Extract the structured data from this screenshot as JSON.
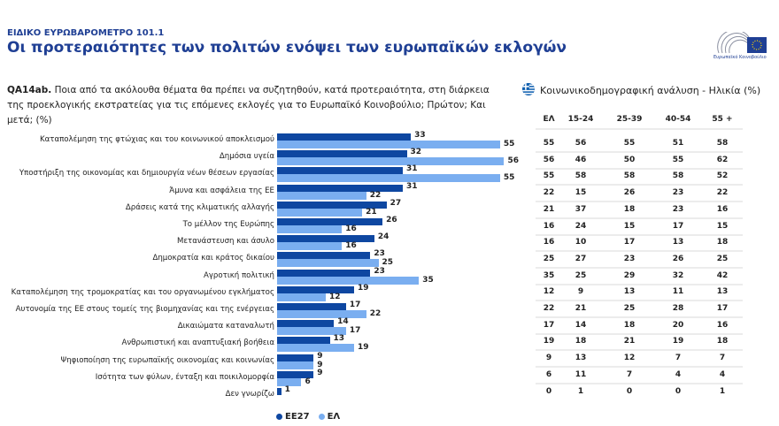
{
  "header": {
    "supertitle": "ΕΙΔΙΚΟ ΕΥΡΩΒΑΡΟΜΕΤΡΟ 101.1",
    "title": "Οι προτεραιότητες των πολιτών ενόψει των ευρωπαϊκών εκλογών",
    "logo_text": "Ευρωπαϊκό Κοινοβούλιο"
  },
  "question": {
    "code": "QA14ab.",
    "text": "Ποια από τα ακόλουθα θέματα θα πρέπει να συζητηθούν, κατά προτεραιότητα, στη διάρκεια της προεκλογικής εκστρατείας για τις επόμενες εκλογές για το Ευρωπαϊκό Κοινοβούλιο; Πρώτον; Και μετά; (%)"
  },
  "colors": {
    "EE27": "#0e47a1",
    "EL": "#7aaef0",
    "title": "#1f3f94"
  },
  "chart_data": {
    "type": "bar",
    "orientation": "horizontal",
    "categories": [
      "Καταπολέμηση της φτώχιας και του κοινωνικού αποκλεισμού",
      "Δημόσια υγεία",
      "Υποστήριξη της οικονομίας και δημιουργία νέων θέσεων εργασίας",
      "Άμυνα και ασφάλεια της ΕΕ",
      "Δράσεις κατά της κλιματικής αλλαγής",
      "Το μέλλον της Ευρώπης",
      "Μετανάστευση και άσυλο",
      "Δημοκρατία και κράτος δικαίου",
      "Αγροτική πολιτική",
      "Καταπολέμηση της τρομοκρατίας και του οργανωμένου εγκλήματος",
      "Αυτονομία της ΕΕ στους τομείς της βιομηχανίας και της ενέργειας",
      "Δικαιώματα καταναλωτή",
      "Ανθρωπιστική και αναπτυξιακή βοήθεια",
      "Ψηφιοποίηση της ευρωπαϊκής οικονομίας και κοινωνίας",
      "Ισότητα των φύλων, ένταξη και ποικιλομορφία",
      "Δεν γνωρίζω"
    ],
    "series": [
      {
        "name": "ΕΕ27",
        "values": [
          33,
          32,
          31,
          31,
          27,
          26,
          24,
          23,
          23,
          19,
          17,
          14,
          13,
          9,
          9,
          1
        ]
      },
      {
        "name": "ΕΛ",
        "values": [
          55,
          56,
          55,
          22,
          21,
          16,
          16,
          25,
          35,
          12,
          22,
          17,
          19,
          9,
          6,
          0
        ]
      }
    ],
    "legend": "bottom",
    "grid": false
  },
  "table": {
    "title": "Κοινωνικοδημογραφική ανάλυση - Ηλικία (%)",
    "headers": [
      "ΕΛ",
      "15-24",
      "25-39",
      "40-54",
      "55 +"
    ],
    "rows": [
      [
        55,
        56,
        55,
        51,
        58
      ],
      [
        56,
        46,
        50,
        55,
        62
      ],
      [
        55,
        58,
        58,
        58,
        52
      ],
      [
        22,
        15,
        26,
        23,
        22
      ],
      [
        21,
        37,
        18,
        23,
        16
      ],
      [
        16,
        24,
        15,
        17,
        15
      ],
      [
        16,
        10,
        17,
        13,
        18
      ],
      [
        25,
        27,
        23,
        26,
        25
      ],
      [
        35,
        25,
        29,
        32,
        42
      ],
      [
        12,
        9,
        13,
        11,
        13
      ],
      [
        22,
        21,
        25,
        28,
        17
      ],
      [
        17,
        14,
        18,
        20,
        16
      ],
      [
        19,
        18,
        21,
        19,
        18
      ],
      [
        9,
        13,
        12,
        7,
        7
      ],
      [
        6,
        11,
        7,
        4,
        4
      ],
      [
        0,
        1,
        0,
        0,
        1
      ]
    ]
  }
}
